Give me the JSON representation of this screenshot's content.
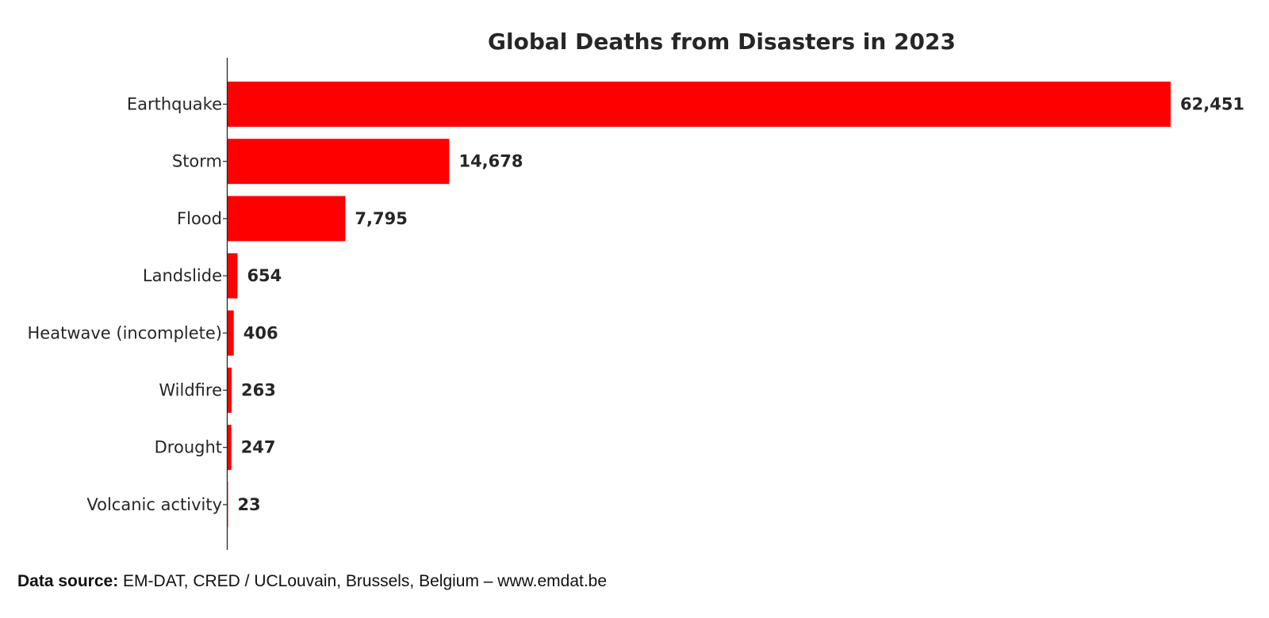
{
  "chart_data": {
    "type": "bar",
    "orientation": "horizontal",
    "title": "Global Deaths from Disasters in 2023",
    "xlabel": "",
    "ylabel": "",
    "categories": [
      "Earthquake",
      "Storm",
      "Flood",
      "Landslide",
      "Heatwave (incomplete)",
      "Wildfire",
      "Drought",
      "Volcanic activity"
    ],
    "values": [
      62451,
      14678,
      7795,
      654,
      406,
      263,
      247,
      23
    ],
    "value_labels": [
      "62,451",
      "14,678",
      "7,795",
      "654",
      "406",
      "263",
      "247",
      "23"
    ],
    "bar_color": "#ff0000",
    "xlim": [
      0,
      62451
    ],
    "grid": false,
    "legend": "none"
  },
  "footer": {
    "label": "Data source:",
    "text": " EM-DAT, CRED / UCLouvain, Brussels, Belgium – www.emdat.be"
  }
}
